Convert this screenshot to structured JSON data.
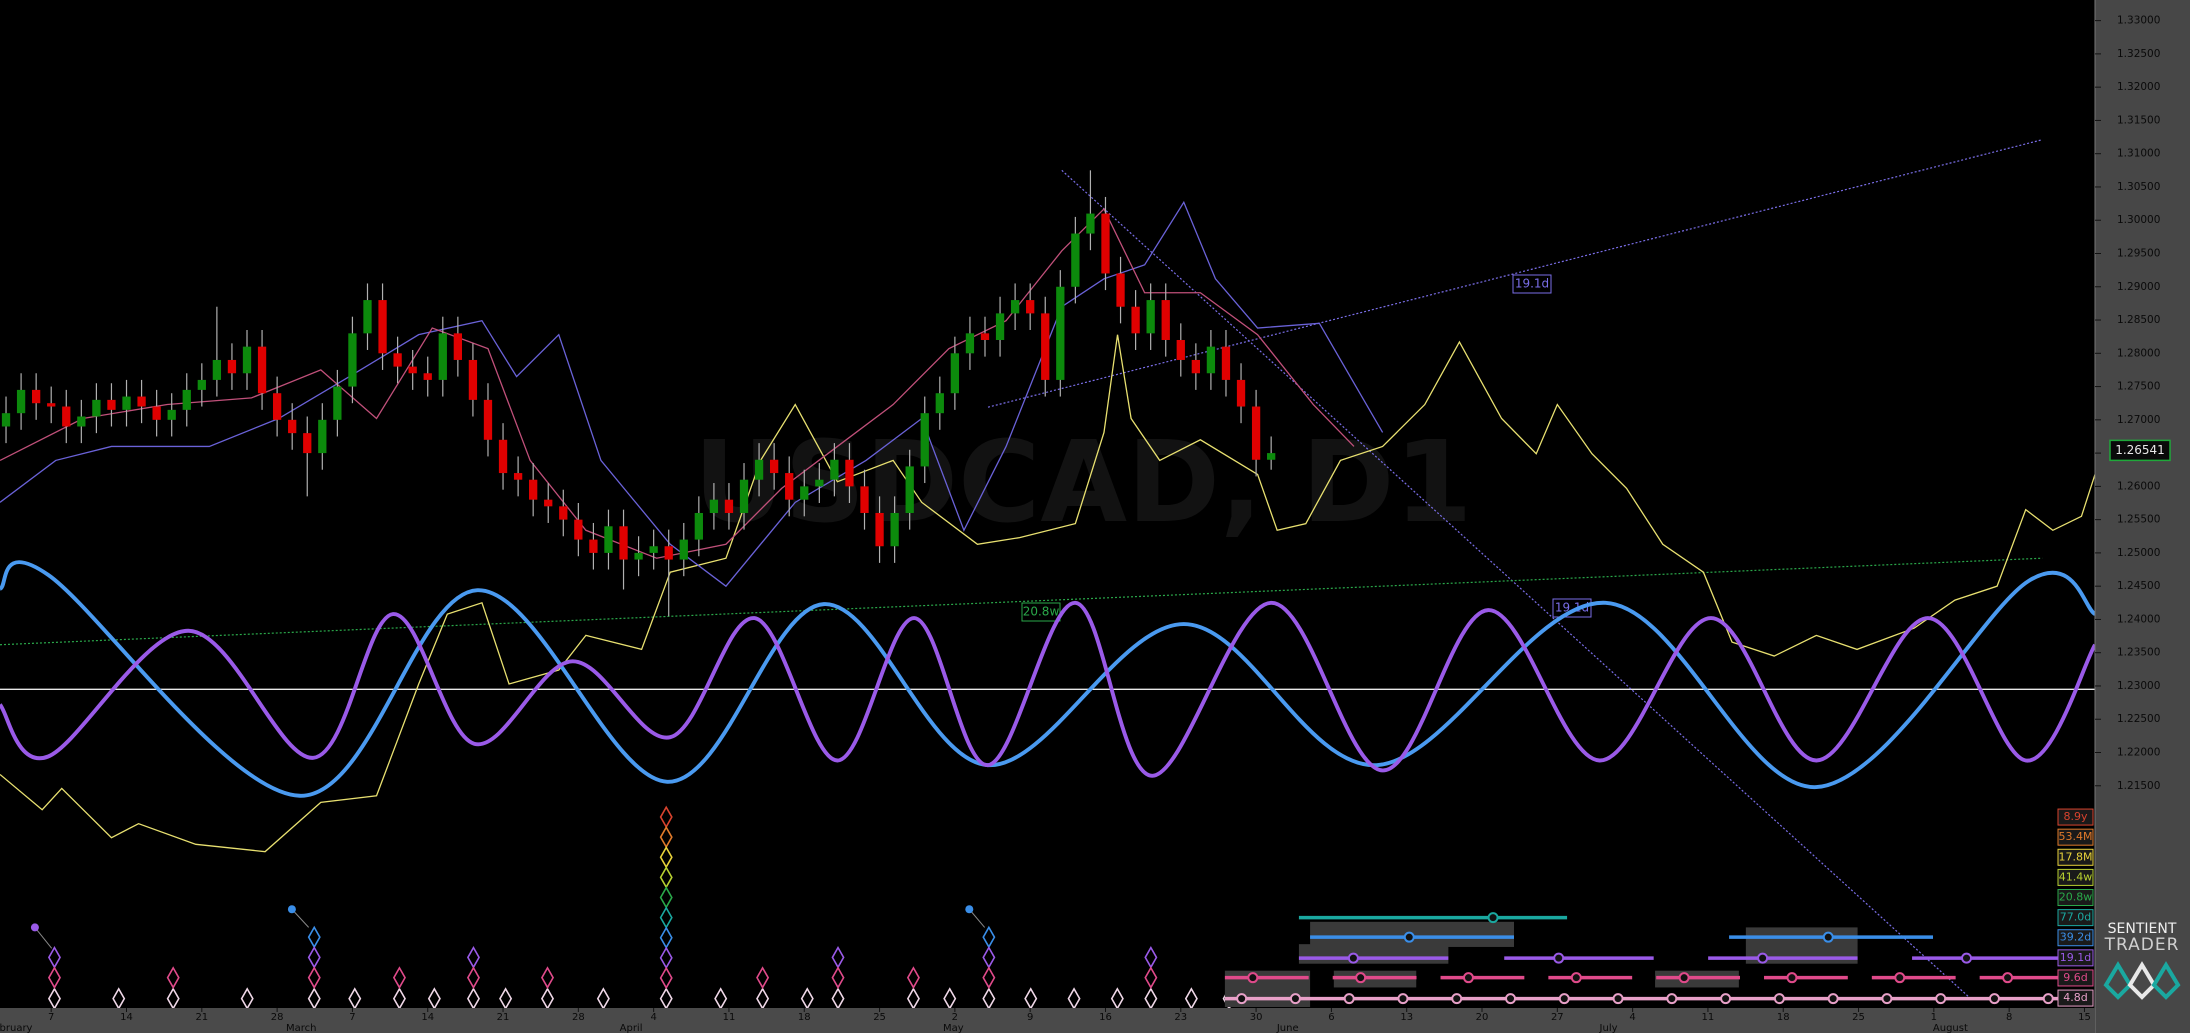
{
  "chart_data": {
    "type": "candlestick",
    "watermark": "USDCAD, D1",
    "logo": [
      "SENTIENT",
      "TRADER"
    ],
    "xlim": [
      -0.4,
      138.7
    ],
    "ylim": [
      1.1816,
      1.3331
    ],
    "xticks": [
      {
        "value": 3,
        "label": "7"
      },
      {
        "value": 8,
        "label": "14"
      },
      {
        "value": 13,
        "label": "21"
      },
      {
        "value": 18,
        "label": "28"
      },
      {
        "value": 23,
        "label": "7"
      },
      {
        "value": 28,
        "label": "14"
      },
      {
        "value": 33,
        "label": "21"
      },
      {
        "value": 38,
        "label": "28"
      },
      {
        "value": 43,
        "label": "4"
      },
      {
        "value": 48,
        "label": "11"
      },
      {
        "value": 53,
        "label": "18"
      },
      {
        "value": 58,
        "label": "25"
      },
      {
        "value": 63,
        "label": "2"
      },
      {
        "value": 68,
        "label": "9"
      },
      {
        "value": 73,
        "label": "16"
      },
      {
        "value": 78,
        "label": "23"
      },
      {
        "value": 83,
        "label": "30"
      },
      {
        "value": 88,
        "label": "6"
      },
      {
        "value": 93,
        "label": "13"
      },
      {
        "value": 98,
        "label": "20"
      },
      {
        "value": 103,
        "label": "27"
      },
      {
        "value": 108,
        "label": "4"
      },
      {
        "value": 113,
        "label": "11"
      },
      {
        "value": 118,
        "label": "18"
      },
      {
        "value": 123,
        "label": "25"
      },
      {
        "value": 128,
        "label": "1"
      },
      {
        "value": 133,
        "label": "8"
      },
      {
        "value": 138,
        "label": "15"
      }
    ],
    "month_labels": [
      {
        "value": 0.6,
        "label": "bruary"
      },
      {
        "value": 19.6,
        "label": "March"
      },
      {
        "value": 41.5,
        "label": "April"
      },
      {
        "value": 62.9,
        "label": "May"
      },
      {
        "value": 85.1,
        "label": "June"
      },
      {
        "value": 106.4,
        "label": "July"
      },
      {
        "value": 129.1,
        "label": "August"
      }
    ],
    "yticks": [
      {
        "value": 1.33,
        "label": "1.33000"
      },
      {
        "value": 1.325,
        "label": "1.32500"
      },
      {
        "value": 1.32,
        "label": "1.32000"
      },
      {
        "value": 1.315,
        "label": "1.31500"
      },
      {
        "value": 1.31,
        "label": "1.31000"
      },
      {
        "value": 1.305,
        "label": "1.30500"
      },
      {
        "value": 1.3,
        "label": "1.30000"
      },
      {
        "value": 1.295,
        "label": "1.29500"
      },
      {
        "value": 1.29,
        "label": "1.29000"
      },
      {
        "value": 1.285,
        "label": "1.28500"
      },
      {
        "value": 1.28,
        "label": "1.28000"
      },
      {
        "value": 1.275,
        "label": "1.27500"
      },
      {
        "value": 1.27,
        "label": "1.27000"
      },
      {
        "value": 1.265,
        "label": "1.26500"
      },
      {
        "value": 1.26,
        "label": "1.26000"
      },
      {
        "value": 1.255,
        "label": "1.25500"
      },
      {
        "value": 1.25,
        "label": "1.25000"
      },
      {
        "value": 1.245,
        "label": "1.24500"
      },
      {
        "value": 1.24,
        "label": "1.24000"
      },
      {
        "value": 1.235,
        "label": "1.23500"
      },
      {
        "value": 1.23,
        "label": "1.23000"
      },
      {
        "value": 1.225,
        "label": "1.22500"
      },
      {
        "value": 1.22,
        "label": "1.22000"
      },
      {
        "value": 1.215,
        "label": "1.21500"
      }
    ],
    "up_color": "#0c8a0c",
    "down_color": "#e00000",
    "ohlc": [
      [
        1.269,
        1.2735,
        1.2665,
        1.271
      ],
      [
        1.271,
        1.277,
        1.2685,
        1.2745
      ],
      [
        1.2745,
        1.277,
        1.27,
        1.2725
      ],
      [
        1.2725,
        1.275,
        1.2695,
        1.272
      ],
      [
        1.272,
        1.2745,
        1.2665,
        1.269
      ],
      [
        1.269,
        1.273,
        1.2665,
        1.2705
      ],
      [
        1.2705,
        1.2755,
        1.268,
        1.273
      ],
      [
        1.273,
        1.2755,
        1.269,
        1.2715
      ],
      [
        1.2715,
        1.276,
        1.269,
        1.2735
      ],
      [
        1.2735,
        1.276,
        1.2695,
        1.272
      ],
      [
        1.272,
        1.2745,
        1.2675,
        1.27
      ],
      [
        1.27,
        1.274,
        1.2675,
        1.2715
      ],
      [
        1.2715,
        1.277,
        1.269,
        1.2745
      ],
      [
        1.2745,
        1.2785,
        1.272,
        1.276
      ],
      [
        1.276,
        1.287,
        1.2735,
        1.279
      ],
      [
        1.279,
        1.2815,
        1.2745,
        1.277
      ],
      [
        1.277,
        1.2835,
        1.2745,
        1.281
      ],
      [
        1.281,
        1.2835,
        1.2715,
        1.274
      ],
      [
        1.274,
        1.2765,
        1.2675,
        1.27
      ],
      [
        1.27,
        1.2725,
        1.2655,
        1.268
      ],
      [
        1.268,
        1.2705,
        1.2585,
        1.265
      ],
      [
        1.265,
        1.2725,
        1.2625,
        1.27
      ],
      [
        1.27,
        1.2775,
        1.2675,
        1.275
      ],
      [
        1.275,
        1.2855,
        1.2725,
        1.283
      ],
      [
        1.283,
        1.2905,
        1.2805,
        1.288
      ],
      [
        1.288,
        1.2905,
        1.2775,
        1.28
      ],
      [
        1.28,
        1.2825,
        1.2755,
        1.278
      ],
      [
        1.278,
        1.2805,
        1.2745,
        1.277
      ],
      [
        1.277,
        1.2795,
        1.2735,
        1.276
      ],
      [
        1.276,
        1.2855,
        1.2735,
        1.283
      ],
      [
        1.283,
        1.2855,
        1.2765,
        1.279
      ],
      [
        1.279,
        1.2815,
        1.2705,
        1.273
      ],
      [
        1.273,
        1.2755,
        1.2645,
        1.267
      ],
      [
        1.267,
        1.2695,
        1.2595,
        1.262
      ],
      [
        1.262,
        1.2645,
        1.2585,
        1.261
      ],
      [
        1.261,
        1.2635,
        1.2555,
        1.258
      ],
      [
        1.258,
        1.2605,
        1.2545,
        1.257
      ],
      [
        1.257,
        1.2595,
        1.2525,
        1.255
      ],
      [
        1.255,
        1.2575,
        1.2495,
        1.252
      ],
      [
        1.252,
        1.2545,
        1.2475,
        1.25
      ],
      [
        1.25,
        1.2565,
        1.2475,
        1.254
      ],
      [
        1.254,
        1.2565,
        1.2445,
        1.249
      ],
      [
        1.249,
        1.2525,
        1.2465,
        1.25
      ],
      [
        1.25,
        1.2535,
        1.2475,
        1.251
      ],
      [
        1.251,
        1.2535,
        1.2405,
        1.249
      ],
      [
        1.249,
        1.2545,
        1.2465,
        1.252
      ],
      [
        1.252,
        1.2585,
        1.2495,
        1.256
      ],
      [
        1.256,
        1.2605,
        1.2535,
        1.258
      ],
      [
        1.258,
        1.2605,
        1.2535,
        1.256
      ],
      [
        1.256,
        1.2635,
        1.2535,
        1.261
      ],
      [
        1.261,
        1.2665,
        1.2585,
        1.264
      ],
      [
        1.264,
        1.2665,
        1.2595,
        1.262
      ],
      [
        1.262,
        1.2645,
        1.2555,
        1.258
      ],
      [
        1.258,
        1.2625,
        1.2555,
        1.26
      ],
      [
        1.26,
        1.2635,
        1.2575,
        1.261
      ],
      [
        1.261,
        1.2665,
        1.2585,
        1.264
      ],
      [
        1.264,
        1.2665,
        1.2575,
        1.26
      ],
      [
        1.26,
        1.2625,
        1.2535,
        1.256
      ],
      [
        1.256,
        1.2585,
        1.2485,
        1.251
      ],
      [
        1.251,
        1.2585,
        1.2485,
        1.256
      ],
      [
        1.256,
        1.2655,
        1.2535,
        1.263
      ],
      [
        1.263,
        1.2735,
        1.2605,
        1.271
      ],
      [
        1.271,
        1.2765,
        1.2685,
        1.274
      ],
      [
        1.274,
        1.2825,
        1.2715,
        1.28
      ],
      [
        1.28,
        1.2855,
        1.2775,
        1.283
      ],
      [
        1.283,
        1.2855,
        1.2795,
        1.282
      ],
      [
        1.282,
        1.2885,
        1.2795,
        1.286
      ],
      [
        1.286,
        1.2905,
        1.2835,
        1.288
      ],
      [
        1.288,
        1.2905,
        1.2835,
        1.286
      ],
      [
        1.286,
        1.2885,
        1.2735,
        1.276
      ],
      [
        1.276,
        1.2925,
        1.2735,
        1.29
      ],
      [
        1.29,
        1.3005,
        1.2875,
        1.298
      ],
      [
        1.298,
        1.3075,
        1.2955,
        1.301
      ],
      [
        1.301,
        1.3035,
        1.2895,
        1.292
      ],
      [
        1.292,
        1.2945,
        1.2845,
        1.287
      ],
      [
        1.287,
        1.2895,
        1.2805,
        1.283
      ],
      [
        1.283,
        1.2905,
        1.2805,
        1.288
      ],
      [
        1.288,
        1.2905,
        1.2795,
        1.282
      ],
      [
        1.282,
        1.2845,
        1.2765,
        1.279
      ],
      [
        1.279,
        1.2815,
        1.2745,
        1.277
      ],
      [
        1.277,
        1.2835,
        1.2745,
        1.281
      ],
      [
        1.281,
        1.2835,
        1.2735,
        1.276
      ],
      [
        1.276,
        1.2785,
        1.2695,
        1.272
      ],
      [
        1.272,
        1.2745,
        1.2615,
        1.264
      ],
      [
        1.264,
        1.2675,
        1.2625,
        1.265
      ]
    ],
    "series": [
      {
        "color": "#e8e070",
        "width": 1,
        "x": [
          -0.4,
          2.4,
          3.7,
          7.0,
          8.8,
          12.6,
          17.2,
          20.9,
          24.6,
          27.4,
          29.3,
          31.6,
          33.4,
          36.7,
          38.5,
          42.2,
          44.1,
          47.8,
          50.1,
          52.4,
          55.2,
          58.9,
          60.8,
          64.5,
          67.3,
          71.0,
          72.9,
          73.8,
          74.7,
          76.6,
          79.3,
          83.1,
          84.4,
          86.3,
          88.6,
          91.4,
          94.2,
          96.5,
          99.3,
          101.6,
          103.0,
          105.3,
          107.6,
          110.0,
          112.7,
          114.6,
          117.4,
          120.2,
          122.9,
          126.7,
          129.4,
          132.2,
          134.1,
          135.9,
          137.8,
          138.7
        ],
        "values": [
          1.2167,
          1.2114,
          1.2146,
          1.2072,
          1.2093,
          1.2062,
          1.2051,
          1.2125,
          1.2135,
          1.2303,
          1.2408,
          1.2425,
          1.2303,
          1.2324,
          1.2376,
          1.2355,
          1.2471,
          1.2492,
          1.2639,
          1.2723,
          1.2607,
          1.2639,
          1.2576,
          1.2513,
          1.2523,
          1.2544,
          1.2681,
          1.2828,
          1.2702,
          1.2639,
          1.267,
          1.2618,
          1.2534,
          1.2544,
          1.2639,
          1.266,
          1.2723,
          1.2817,
          1.2702,
          1.2649,
          1.2723,
          1.2649,
          1.2597,
          1.2513,
          1.2471,
          1.2366,
          1.2345,
          1.2376,
          1.2355,
          1.2387,
          1.2429,
          1.245,
          1.2565,
          1.2534,
          1.2555,
          1.2618
        ]
      },
      {
        "color": "#6a62d8",
        "width": 1,
        "x": [
          -0.4,
          3.3,
          7.0,
          13.5,
          18.1,
          22.8,
          27.4,
          31.6,
          33.9,
          36.7,
          39.5,
          44.1,
          47.8,
          52.4,
          57.1,
          60.8,
          63.6,
          66.4,
          70.1,
          72.9,
          75.6,
          78.2,
          80.3,
          83.1,
          87.2,
          91.4
        ],
        "values": [
          1.2576,
          1.2639,
          1.266,
          1.266,
          1.2702,
          1.2765,
          1.2828,
          1.2849,
          1.2765,
          1.2828,
          1.2639,
          1.2513,
          1.245,
          1.2576,
          1.2639,
          1.2702,
          1.2534,
          1.266,
          1.287,
          1.2912,
          1.2933,
          1.3027,
          1.2912,
          1.2838,
          1.2845,
          1.2681
        ]
      },
      {
        "color": "#c0507a",
        "width": 1,
        "x": [
          -0.4,
          5.1,
          10.7,
          16.3,
          20.9,
          24.6,
          28.3,
          32.0,
          34.8,
          38.5,
          43.2,
          47.8,
          51.5,
          55.2,
          58.9,
          62.6,
          66.4,
          70.1,
          72.9,
          75.6,
          79.3,
          83.1,
          86.8,
          89.5
        ],
        "values": [
          1.2639,
          1.2702,
          1.2723,
          1.2733,
          1.2775,
          1.2702,
          1.2838,
          1.2807,
          1.2639,
          1.2534,
          1.2492,
          1.2513,
          1.2597,
          1.266,
          1.2723,
          1.2807,
          1.2849,
          1.2954,
          1.3017,
          1.2891,
          1.2891,
          1.2828,
          1.2723,
          1.266
        ]
      },
      {
        "color": "#4a9af0",
        "width": 3,
        "x": [
          -0.4,
          2.8,
          19.5,
          31.3,
          43.9,
          54.3,
          65.2,
          78.2,
          91.0,
          106.2,
          120.2,
          134.3,
          138.7
        ],
        "values": [
          1.2446,
          1.2467,
          1.2135,
          1.2444,
          1.2156,
          1.2423,
          1.2181,
          1.2393,
          1.2181,
          1.2425,
          1.2148,
          1.2458,
          1.2408
        ]
      },
      {
        "color": "#9a5ae8",
        "width": 3,
        "x": [
          -0.4,
          2.8,
          12.1,
          20.4,
          25.7,
          31.1,
          37.6,
          44.1,
          49.7,
          55.2,
          60.3,
          65.2,
          71.0,
          76.1,
          84.0,
          91.4,
          98.4,
          105.8,
          113.2,
          120.2,
          127.6,
          134.1,
          138.7
        ],
        "values": [
          1.2272,
          1.2194,
          1.2383,
          1.2192,
          1.2408,
          1.2213,
          1.2337,
          1.2223,
          1.2402,
          1.2188,
          1.2402,
          1.2181,
          1.2425,
          1.2165,
          1.2425,
          1.2173,
          1.2414,
          1.2188,
          1.2402,
          1.2188,
          1.2402,
          1.2188,
          1.2362
        ]
      }
    ],
    "trendlines": [
      {
        "color": "#7a6ee8",
        "label": "19.1d",
        "x": [
          65.2,
          135.2
        ],
        "values": [
          1.2719,
          1.3121
        ]
      },
      {
        "color": "#7a6ee8",
        "label": "19.1d",
        "x": [
          70.1,
          130.4
        ],
        "values": [
          1.3075,
          1.1831
        ]
      },
      {
        "color": "#2aa84a",
        "label": "20.8w",
        "x": [
          -0.4,
          135.2
        ],
        "values": [
          1.2362,
          1.2492
        ]
      }
    ],
    "hline": 1.2295,
    "last_price": 1.26541,
    "cycles": [
      {
        "label": "8.9y",
        "color": "#d8432e"
      },
      {
        "label": "53.4M",
        "color": "#e07a2a"
      },
      {
        "label": "17.8M",
        "color": "#e8d23a"
      },
      {
        "label": "41.4w",
        "color": "#b8d030"
      },
      {
        "label": "20.8w",
        "color": "#2aa84a"
      },
      {
        "label": "77.0d",
        "color": "#1aa8a0"
      },
      {
        "label": "39.2d",
        "color": "#3a8ee8"
      },
      {
        "label": "19.1d",
        "color": "#9a5ae8"
      },
      {
        "label": "9.6d",
        "color": "#e04a8a"
      },
      {
        "label": "4.8d",
        "color": "#e8a0c8"
      }
    ]
  }
}
